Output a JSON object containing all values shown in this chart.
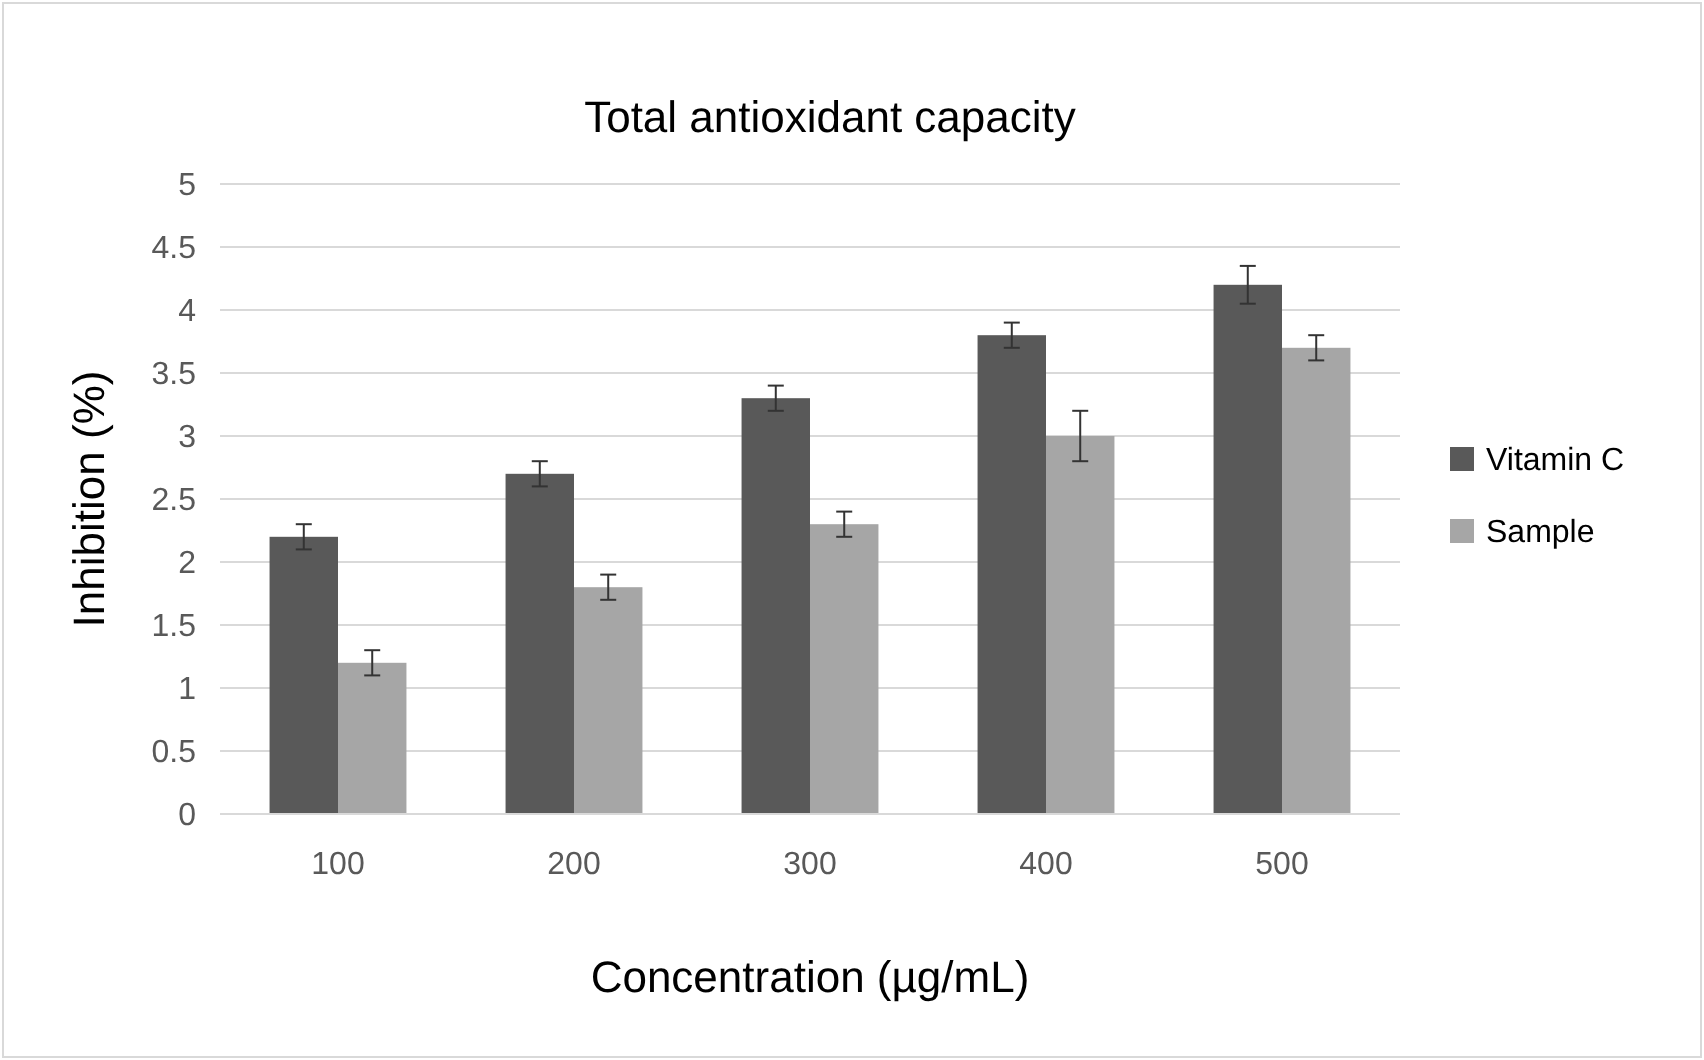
{
  "chart_data": {
    "type": "bar",
    "title": "Total antioxidant capacity",
    "xlabel": "Concentration (µg/mL)",
    "ylabel": "Inhibition (%)",
    "categories": [
      "100",
      "200",
      "300",
      "400",
      "500"
    ],
    "series": [
      {
        "name": "Vitamin C",
        "color": "#595959",
        "values": [
          2.2,
          2.7,
          3.3,
          3.8,
          4.2
        ],
        "errors": [
          0.1,
          0.1,
          0.1,
          0.1,
          0.15
        ]
      },
      {
        "name": "Sample",
        "color": "#a6a6a6",
        "values": [
          1.2,
          1.8,
          2.3,
          3.0,
          3.7
        ],
        "errors": [
          0.1,
          0.1,
          0.1,
          0.2,
          0.1
        ]
      }
    ],
    "ylim": [
      0,
      5
    ],
    "yticks": [
      0,
      0.5,
      1,
      1.5,
      2,
      2.5,
      3,
      3.5,
      4,
      4.5,
      5
    ],
    "grid": "y",
    "legend": "right"
  }
}
